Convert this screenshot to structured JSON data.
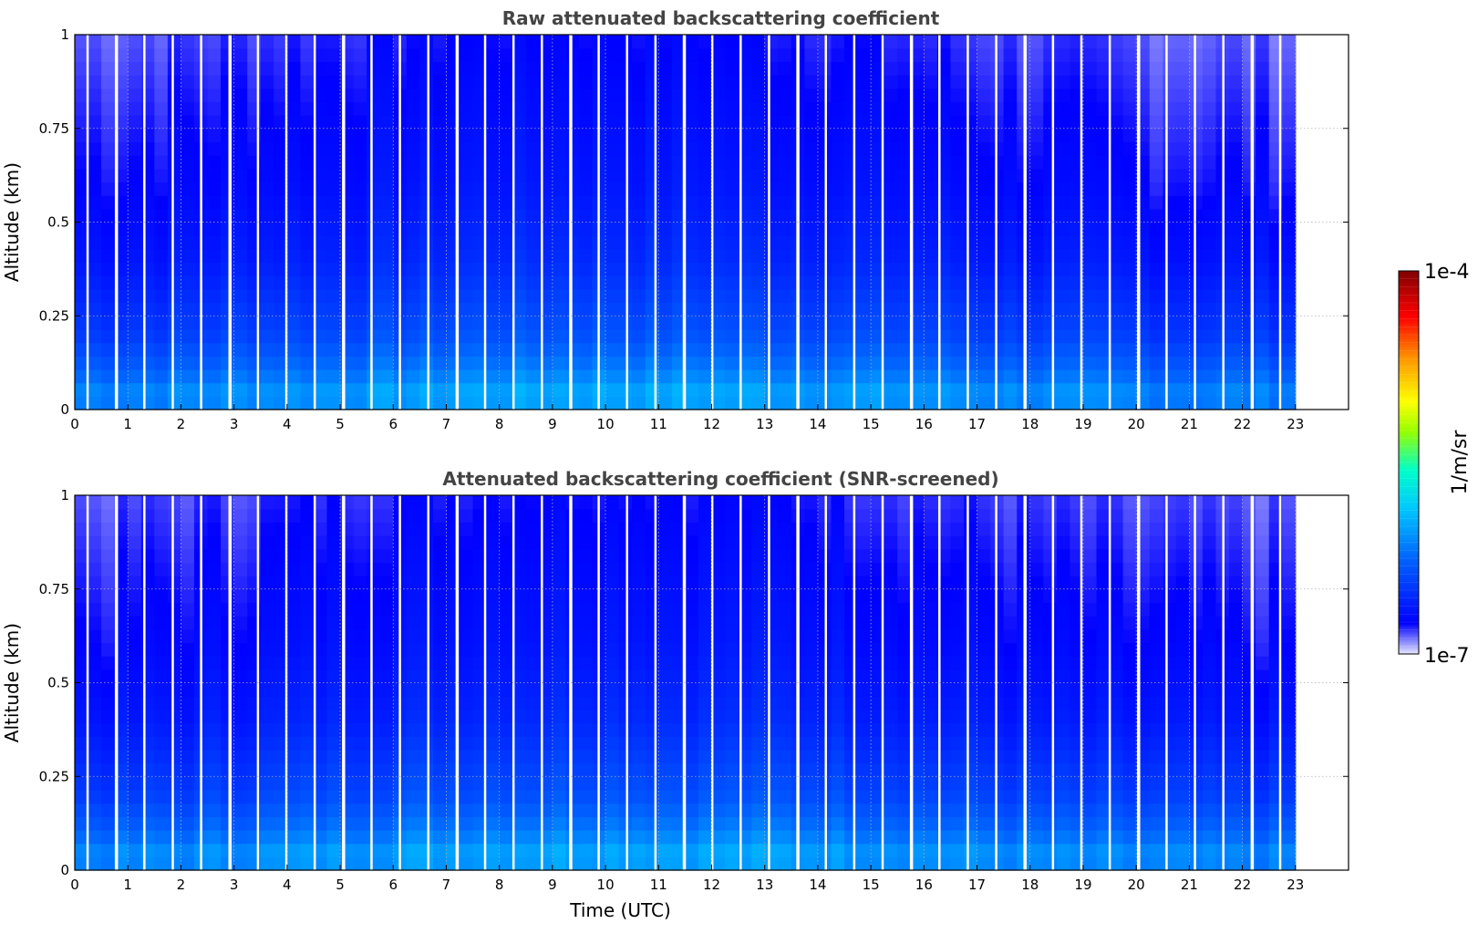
{
  "colors": {
    "background": "#ffffff",
    "title_text": "#444444",
    "grid": "#b0b0b0",
    "colormap": [
      "#e6e6ff",
      "#0000ff",
      "#0064ff",
      "#00c8ff",
      "#00ffc8",
      "#96ff00",
      "#ffff00",
      "#ff9600",
      "#ff0000",
      "#800000"
    ]
  },
  "chart_data": [
    {
      "type": "heatmap",
      "title": "Raw attenuated backscattering coefficient",
      "xlabel": "",
      "ylabel": "Altitude (km)",
      "xlim": [
        0,
        24
      ],
      "ylim": [
        0,
        1
      ],
      "xticks": [
        "0",
        "1",
        "2",
        "3",
        "4",
        "5",
        "6",
        "7",
        "8",
        "9",
        "10",
        "11",
        "12",
        "13",
        "14",
        "15",
        "16",
        "17",
        "18",
        "19",
        "20",
        "21",
        "22",
        "23"
      ],
      "yticks": [
        "0",
        "0.25",
        "0.5",
        "0.75",
        "1"
      ],
      "grid": true,
      "data_extent_hours": [
        0,
        23
      ],
      "color_scale": "log",
      "approx_log10_value_by_altitude": {
        "altitude_km": [
          0.0,
          0.05,
          0.1,
          0.2,
          0.4,
          0.6,
          0.8,
          1.0
        ],
        "log10_beta": [
          -6.1,
          -6.05,
          -6.2,
          -6.4,
          -6.6,
          -6.7,
          -6.75,
          -6.8
        ]
      }
    },
    {
      "type": "heatmap",
      "title": "Attenuated backscattering coefficient (SNR-screened)",
      "xlabel": "Time (UTC)",
      "ylabel": "Altitude (km)",
      "xlim": [
        0,
        24
      ],
      "ylim": [
        0,
        1
      ],
      "xticks": [
        "0",
        "1",
        "2",
        "3",
        "4",
        "5",
        "6",
        "7",
        "8",
        "9",
        "10",
        "11",
        "12",
        "13",
        "14",
        "15",
        "16",
        "17",
        "18",
        "19",
        "20",
        "21",
        "22",
        "23"
      ],
      "yticks": [
        "0",
        "0.25",
        "0.5",
        "0.75",
        "1"
      ],
      "grid": true,
      "data_extent_hours": [
        0,
        23
      ],
      "color_scale": "log",
      "approx_log10_value_by_altitude": {
        "altitude_km": [
          0.0,
          0.05,
          0.1,
          0.2,
          0.4,
          0.6,
          0.8,
          1.0
        ],
        "log10_beta": [
          -6.1,
          -6.05,
          -6.2,
          -6.4,
          -6.6,
          -6.7,
          -6.75,
          -6.8
        ]
      }
    }
  ],
  "colorbar": {
    "label": "1/m/sr",
    "max_label": "1e-4",
    "min_label": "1e-7",
    "range_log10": [
      -7,
      -4
    ]
  }
}
